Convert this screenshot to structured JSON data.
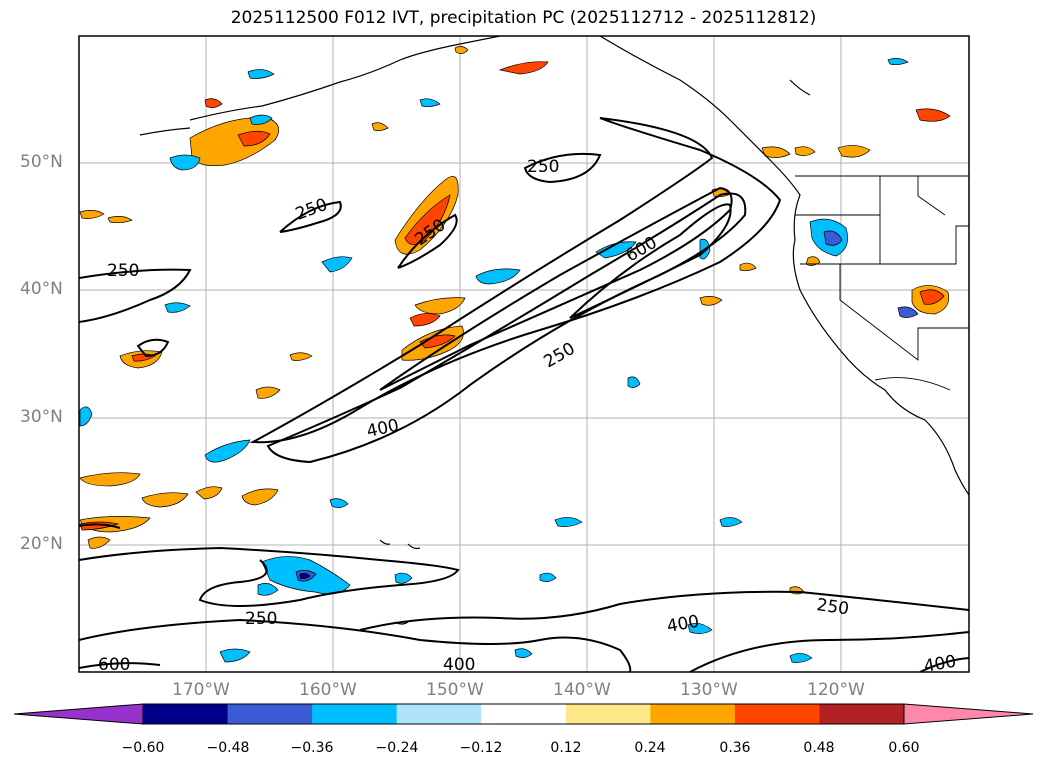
{
  "title": "2025112500 F012 IVT, precipitation PC (2025112712 - 2025112812)",
  "map": {
    "lat_ticks": [
      "50°N",
      "40°N",
      "30°N",
      "20°N"
    ],
    "lon_ticks": [
      "170°W",
      "160°W",
      "150°W",
      "140°W",
      "130°W",
      "120°W"
    ],
    "contour_labels": [
      "250",
      "250",
      "250",
      "250",
      "600",
      "250",
      "400",
      "250",
      "400",
      "600",
      "400",
      "400"
    ]
  },
  "colorbar": {
    "ticks": [
      "−0.60",
      "−0.48",
      "−0.36",
      "−0.24",
      "−0.12",
      "0.12",
      "0.24",
      "0.36",
      "0.48",
      "0.60"
    ],
    "colors": [
      "#9932cc",
      "#00008b",
      "#3a5bd3",
      "#00bfff",
      "#aee4fa",
      "#ffffff",
      "#ffe88a",
      "#ffa500",
      "#ff4500",
      "#b22222",
      "#ff88aa"
    ]
  }
}
